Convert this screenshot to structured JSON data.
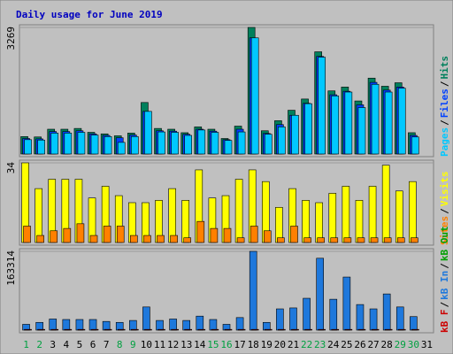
{
  "chart_data": [
    {
      "type": "bar",
      "title": "Daily usage for June 2019",
      "ylim": [
        0,
        3269
      ],
      "yticks": [
        3269
      ],
      "series": [
        {
          "name": "Hits",
          "color": "#00805c",
          "values": [
            450,
            440,
            640,
            640,
            660,
            560,
            520,
            470,
            540,
            1330,
            660,
            640,
            550,
            700,
            640,
            400,
            720,
            3269,
            600,
            860,
            1130,
            1420,
            2640,
            1630,
            1730,
            1370,
            1960,
            1750,
            1840,
            550,
            0
          ]
        },
        {
          "name": "Files",
          "color": "#0040ff",
          "values": [
            400,
            390,
            580,
            580,
            600,
            520,
            480,
            420,
            490,
            1100,
            600,
            590,
            510,
            640,
            590,
            370,
            640,
            3000,
            530,
            760,
            1000,
            1310,
            2520,
            1530,
            1620,
            1270,
            1850,
            1650,
            1730,
            480,
            0
          ]
        },
        {
          "name": "Pages",
          "color": "#00c8ff",
          "values": [
            370,
            360,
            540,
            540,
            560,
            490,
            450,
            300,
            450,
            1100,
            570,
            560,
            480,
            620,
            560,
            350,
            570,
            3000,
            510,
            700,
            1000,
            1300,
            2500,
            1500,
            1600,
            1200,
            1800,
            1600,
            1700,
            440,
            0
          ]
        }
      ]
    },
    {
      "type": "bar",
      "ylim": [
        0,
        34
      ],
      "yticks": [
        34
      ],
      "series": [
        {
          "name": "Visits",
          "color": "#ffff00",
          "values": [
            34,
            23,
            27,
            27,
            27,
            19,
            24,
            20,
            17,
            17,
            18,
            23,
            18,
            31,
            19,
            20,
            27,
            31,
            26,
            15,
            23,
            18,
            17,
            21,
            24,
            18,
            24,
            33,
            22,
            26,
            0
          ]
        },
        {
          "name": "Sites",
          "color": "#ff8000",
          "values": [
            7,
            3,
            5,
            6,
            8,
            3,
            7,
            7,
            3,
            3,
            3,
            3,
            2,
            9,
            6,
            6,
            2,
            7,
            5,
            2,
            7,
            2,
            2,
            2,
            2,
            2,
            2,
            2,
            2,
            2,
            0
          ]
        }
      ]
    },
    {
      "type": "bar",
      "ylim": [
        0,
        163314
      ],
      "yticks": [
        163314
      ],
      "categories": [
        "1",
        "2",
        "3",
        "4",
        "5",
        "6",
        "7",
        "8",
        "9",
        "10",
        "11",
        "12",
        "13",
        "14",
        "15",
        "16",
        "17",
        "18",
        "19",
        "20",
        "21",
        "22",
        "23",
        "24",
        "25",
        "26",
        "27",
        "28",
        "29",
        "30",
        "31"
      ],
      "highlight_categories": [
        0,
        1,
        7,
        8,
        14,
        15,
        21,
        22,
        28,
        29
      ],
      "highlight_color": "#00a040",
      "series": [
        {
          "name": "kB Out",
          "color": "#00a000",
          "values": [
            0,
            0,
            0,
            0,
            0,
            0,
            0,
            0,
            0,
            0,
            0,
            0,
            0,
            0,
            0,
            0,
            0,
            0,
            0,
            0,
            0,
            0,
            0,
            0,
            0,
            0,
            0,
            0,
            0,
            0,
            0
          ]
        },
        {
          "name": "kB In",
          "color": "#1e78dc",
          "values": [
            12000,
            16000,
            23000,
            22000,
            22000,
            22000,
            18000,
            16000,
            20000,
            48000,
            20000,
            23000,
            20000,
            29000,
            22000,
            12000,
            26000,
            163314,
            16000,
            44000,
            46000,
            66000,
            149000,
            64000,
            110000,
            53000,
            44000,
            75000,
            48000,
            28000,
            0
          ]
        },
        {
          "name": "kB F",
          "color": "#cc0000",
          "values": [
            1500,
            1500,
            1500,
            1500,
            1500,
            1500,
            1500,
            1500,
            1500,
            1500,
            1500,
            1500,
            1500,
            1500,
            1500,
            1500,
            1500,
            1500,
            1500,
            1500,
            1500,
            1500,
            1500,
            1500,
            1500,
            1500,
            1500,
            1500,
            1500,
            1500,
            0
          ]
        }
      ]
    }
  ],
  "legend_separator": "/"
}
